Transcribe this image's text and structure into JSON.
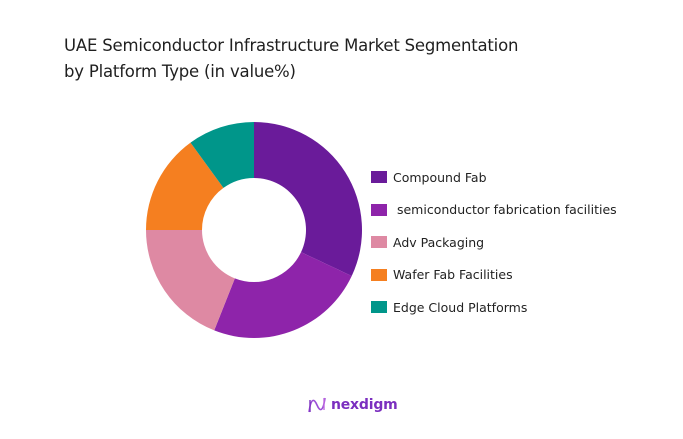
{
  "title_line1": "UAE Semiconductor Infrastructure Market Segmentation",
  "title_line2": "by Platform Type (in value%)",
  "brand": "nexdigm",
  "chart_data": {
    "type": "pie",
    "subtype": "donut",
    "title": "UAE Semiconductor Infrastructure Market Segmentation by Platform Type (in value%)",
    "categories": [
      "Compound Fab",
      "semiconductor fabrication facilities",
      "Adv Packaging",
      "Wafer Fab Facilities",
      "Edge Cloud Platforms"
    ],
    "values": [
      32,
      24,
      19,
      15,
      10
    ],
    "colors": [
      "#6a1b9a",
      "#8e24aa",
      "#de89a3",
      "#f57f20",
      "#00968a"
    ],
    "legend_position": "right",
    "start_angle": "top, clockwise"
  },
  "legend": [
    {
      "label": "Compound Fab",
      "color": "#6a1b9a"
    },
    {
      "label": " semiconductor fabrication facilities",
      "color": "#8e24aa"
    },
    {
      "label": "Adv Packaging",
      "color": "#de89a3"
    },
    {
      "label": "Wafer Fab Facilities",
      "color": "#f57f20"
    },
    {
      "label": "Edge Cloud Platforms",
      "color": "#00968a"
    }
  ]
}
